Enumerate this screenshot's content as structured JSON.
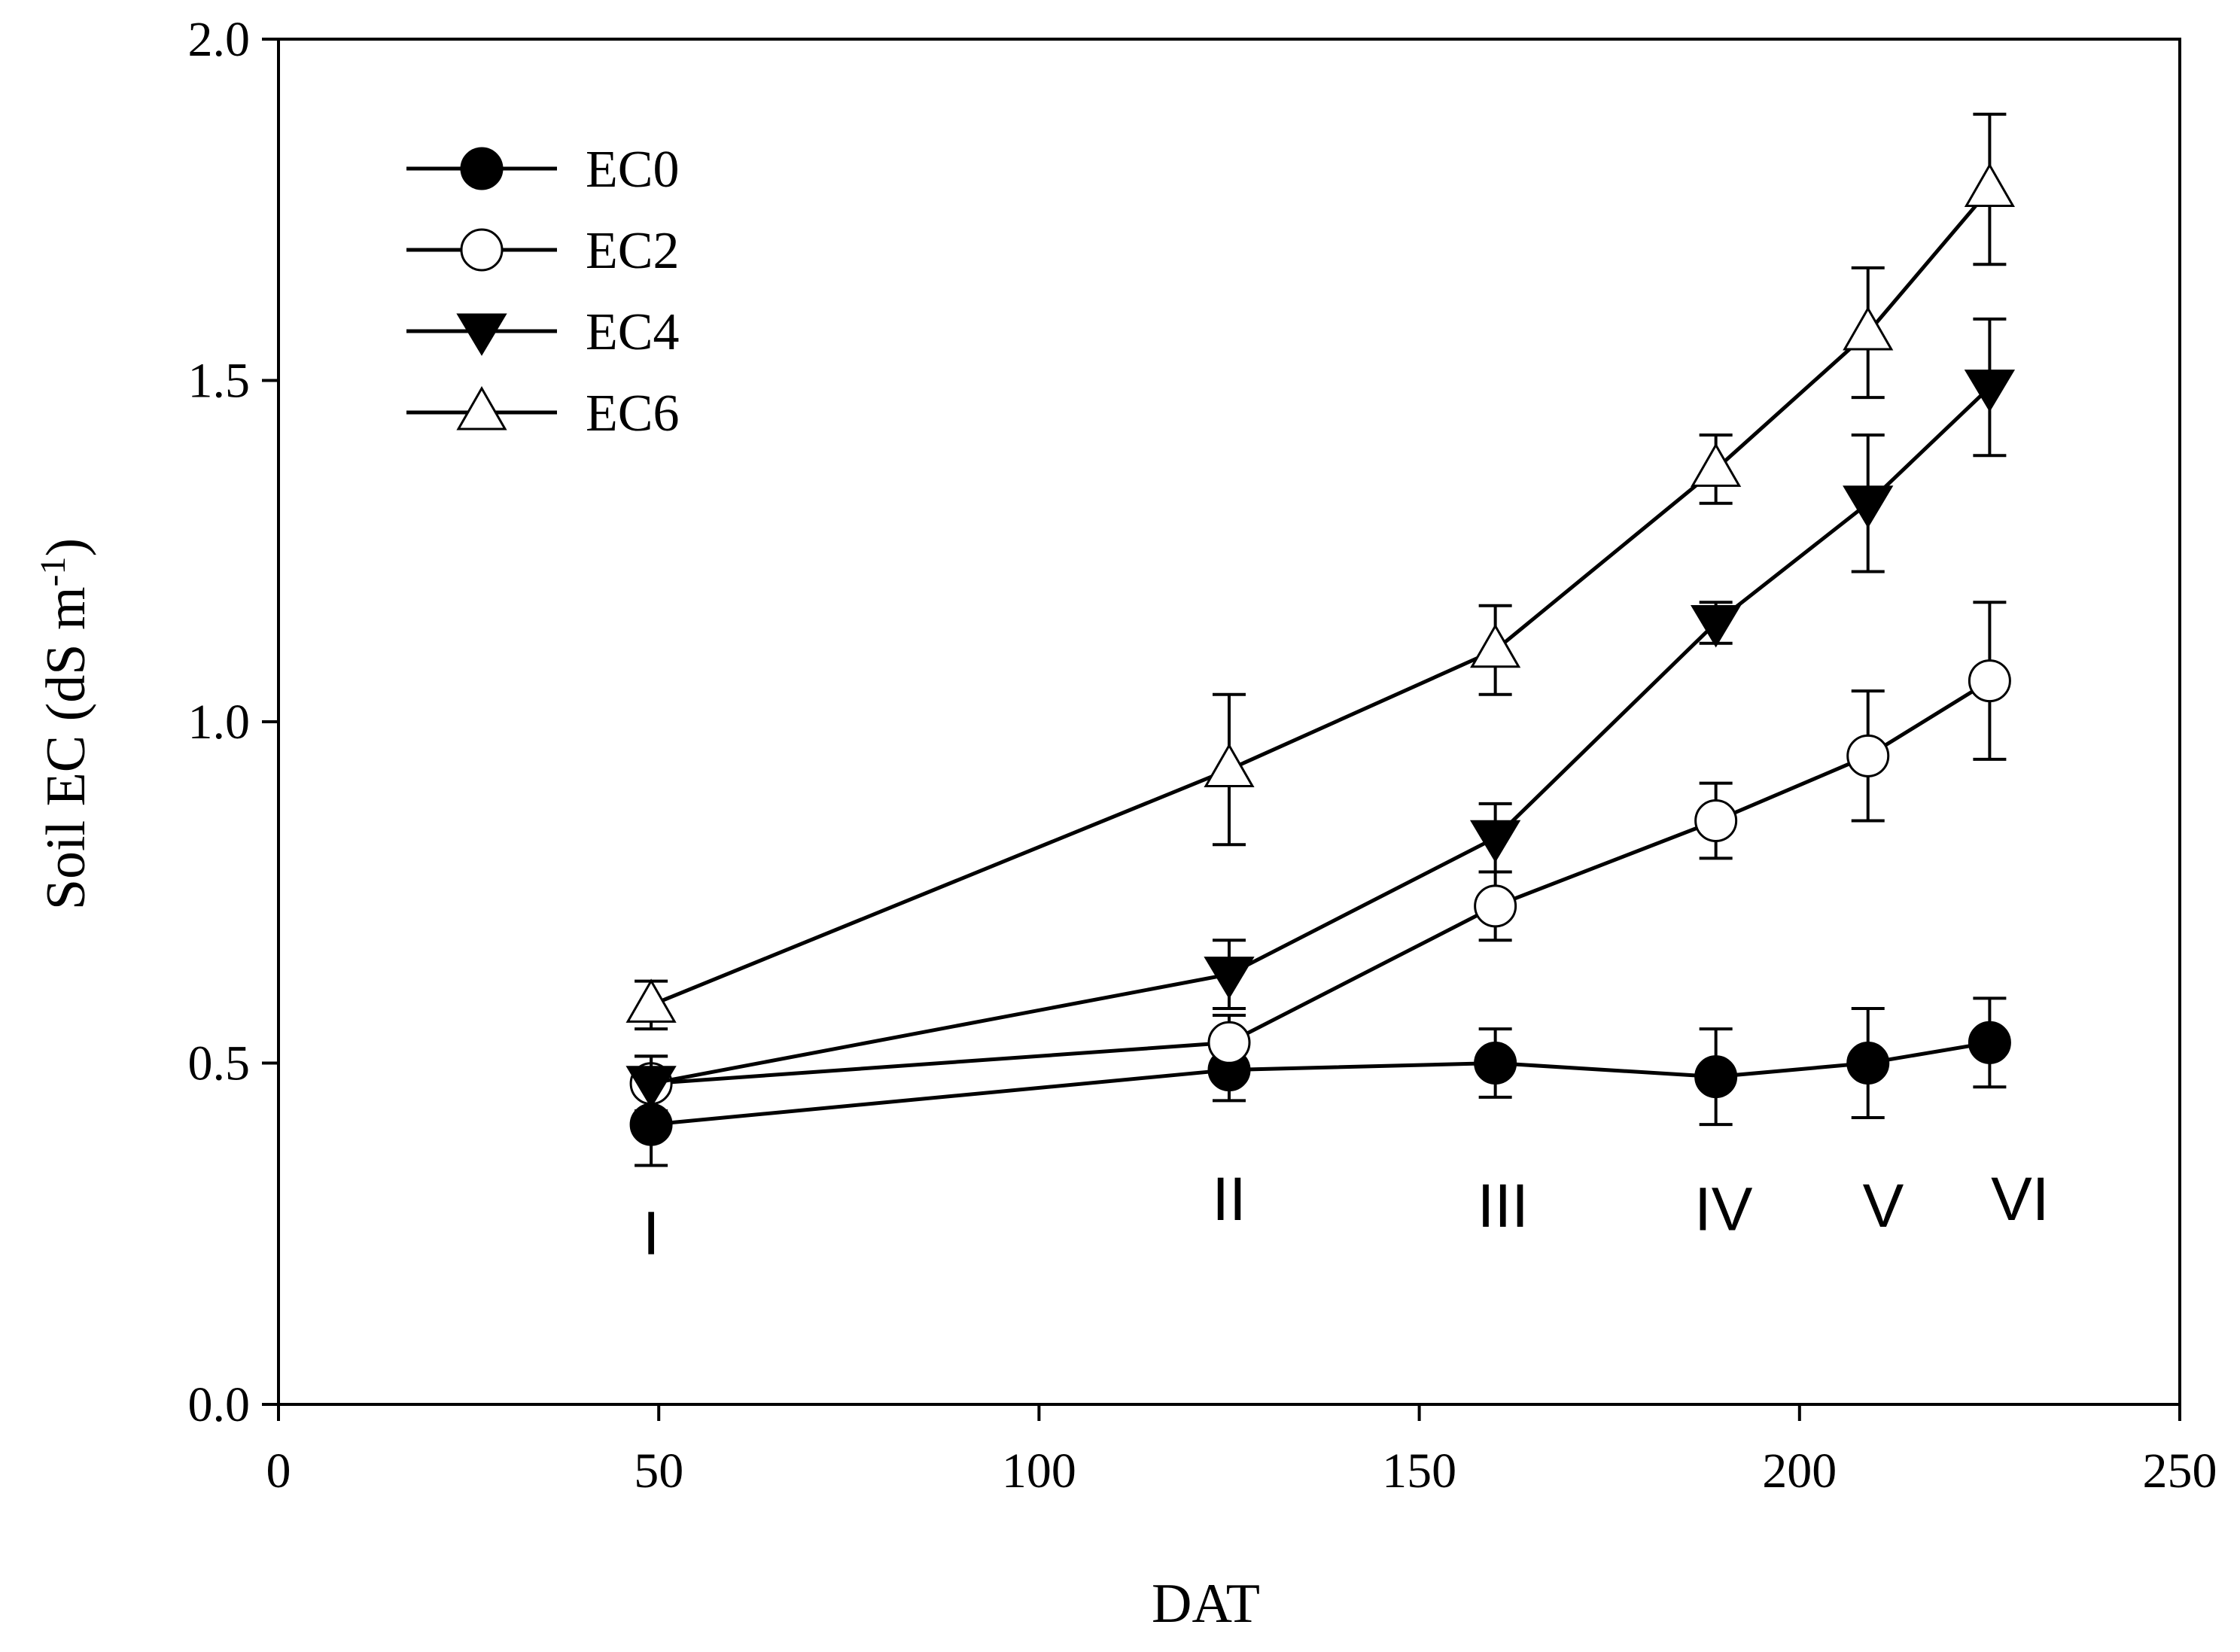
{
  "chart_data": {
    "type": "line",
    "xlabel": "DAT",
    "ylabel": "Soil EC (dS m",
    "ylabel_superscript": "-1",
    "ylabel_suffix": ")",
    "xlim": [
      0,
      250
    ],
    "ylim": [
      0.0,
      2.0
    ],
    "x_ticks": [
      {
        "value": 0,
        "label": "0"
      },
      {
        "value": 50,
        "label": "50"
      },
      {
        "value": 100,
        "label": "100"
      },
      {
        "value": 150,
        "label": "150"
      },
      {
        "value": 200,
        "label": "200"
      },
      {
        "value": 250,
        "label": "250"
      }
    ],
    "y_ticks": [
      {
        "value": 0.0,
        "label": "0.0"
      },
      {
        "value": 0.5,
        "label": "0.5"
      },
      {
        "value": 1.0,
        "label": "1.0"
      },
      {
        "value": 1.5,
        "label": "1.5"
      },
      {
        "value": 2.0,
        "label": "2.0"
      }
    ],
    "legend_position": "top-left",
    "grid": false,
    "x": [
      49,
      125,
      160,
      189,
      209,
      225
    ],
    "series": [
      {
        "name": "EC0",
        "marker": "filled-circle",
        "values": [
          0.41,
          0.49,
          0.5,
          0.48,
          0.5,
          0.53
        ],
        "errors": [
          0.06,
          0.045,
          0.05,
          0.07,
          0.08,
          0.065
        ]
      },
      {
        "name": "EC2",
        "marker": "open-circle",
        "values": [
          0.47,
          0.53,
          0.73,
          0.855,
          0.95,
          1.06
        ],
        "errors": [
          0.04,
          0.04,
          0.05,
          0.055,
          0.095,
          0.115
        ]
      },
      {
        "name": "EC4",
        "marker": "filled-triangle-down",
        "values": [
          0.47,
          0.63,
          0.83,
          1.145,
          1.32,
          1.49
        ],
        "errors": [
          0.04,
          0.05,
          0.05,
          0.03,
          0.1,
          0.1
        ]
      },
      {
        "name": "EC6",
        "marker": "open-triangle-up",
        "values": [
          0.585,
          0.93,
          1.105,
          1.37,
          1.57,
          1.78
        ],
        "errors": [
          0.035,
          0.11,
          0.065,
          0.05,
          0.095,
          0.11
        ]
      }
    ],
    "annotations": [
      {
        "text": "I",
        "x": 49,
        "y": 0.22
      },
      {
        "text": "II",
        "x": 125,
        "y": 0.27
      },
      {
        "text": "III",
        "x": 161,
        "y": 0.26
      },
      {
        "text": "IV",
        "x": 190,
        "y": 0.255
      },
      {
        "text": "V",
        "x": 211,
        "y": 0.26
      },
      {
        "text": "VI",
        "x": 229,
        "y": 0.27
      }
    ]
  }
}
